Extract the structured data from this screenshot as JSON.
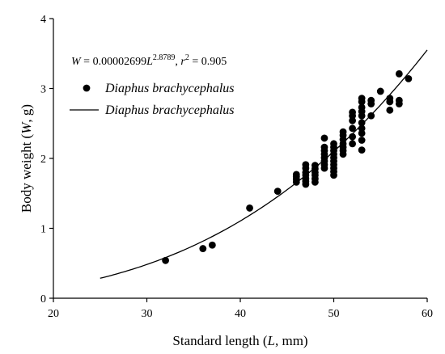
{
  "chart_data": {
    "type": "scatter",
    "xlabel_parts": [
      "Standard length (",
      "L",
      ", mm)"
    ],
    "ylabel_parts": [
      "Body weight (",
      "W",
      ", g)"
    ],
    "xlim": [
      20,
      60
    ],
    "ylim": [
      0,
      4
    ],
    "x_ticks": [
      20,
      30,
      40,
      50,
      60
    ],
    "y_ticks": [
      0,
      1,
      2,
      3,
      4
    ],
    "grid": false,
    "legend_position": "top-left",
    "equation": {
      "lhs": "W",
      "eq": " = 0.00002699",
      "var": "L",
      "exponent": "2.8789",
      "sep": ", ",
      "r": "r",
      "r_exp": "2",
      "r_val": " = 0.905"
    },
    "series": [
      {
        "name": "Diaphus brachycephalus",
        "kind": "scatter",
        "marker": "filled-circle",
        "color": "#000000",
        "points": [
          [
            32,
            0.54
          ],
          [
            36,
            0.71
          ],
          [
            37,
            0.76
          ],
          [
            41,
            1.29
          ],
          [
            44,
            1.53
          ],
          [
            46,
            1.66
          ],
          [
            46,
            1.7
          ],
          [
            46,
            1.74
          ],
          [
            46,
            1.77
          ],
          [
            47,
            1.63
          ],
          [
            47,
            1.67
          ],
          [
            47,
            1.71
          ],
          [
            47,
            1.76
          ],
          [
            47,
            1.8
          ],
          [
            47,
            1.86
          ],
          [
            47,
            1.91
          ],
          [
            48,
            1.66
          ],
          [
            48,
            1.71
          ],
          [
            48,
            1.76
          ],
          [
            48,
            1.8
          ],
          [
            48,
            1.85
          ],
          [
            48,
            1.9
          ],
          [
            49,
            1.86
          ],
          [
            49,
            1.91
          ],
          [
            49,
            1.96
          ],
          [
            49,
            2.01
          ],
          [
            49,
            2.06
          ],
          [
            49,
            2.11
          ],
          [
            49,
            2.16
          ],
          [
            49,
            2.29
          ],
          [
            50,
            1.76
          ],
          [
            50,
            1.81
          ],
          [
            50,
            1.86
          ],
          [
            50,
            1.91
          ],
          [
            50,
            1.96
          ],
          [
            50,
            2.01
          ],
          [
            50,
            2.06
          ],
          [
            50,
            2.11
          ],
          [
            50,
            2.16
          ],
          [
            50,
            2.21
          ],
          [
            51,
            2.06
          ],
          [
            51,
            2.11
          ],
          [
            51,
            2.16
          ],
          [
            51,
            2.21
          ],
          [
            51,
            2.27
          ],
          [
            51,
            2.33
          ],
          [
            51,
            2.38
          ],
          [
            52,
            2.21
          ],
          [
            52,
            2.31
          ],
          [
            52,
            2.43
          ],
          [
            52,
            2.54
          ],
          [
            52,
            2.61
          ],
          [
            52,
            2.66
          ],
          [
            53,
            2.12
          ],
          [
            53,
            2.26
          ],
          [
            53,
            2.36
          ],
          [
            53,
            2.43
          ],
          [
            53,
            2.51
          ],
          [
            53,
            2.61
          ],
          [
            53,
            2.67
          ],
          [
            53,
            2.73
          ],
          [
            53,
            2.81
          ],
          [
            53,
            2.86
          ],
          [
            54,
            2.61
          ],
          [
            54,
            2.78
          ],
          [
            54,
            2.83
          ],
          [
            55,
            2.96
          ],
          [
            56,
            2.69
          ],
          [
            56,
            2.81
          ],
          [
            56,
            2.86
          ],
          [
            57,
            2.78
          ],
          [
            57,
            2.83
          ],
          [
            57,
            3.21
          ],
          [
            58,
            3.14
          ]
        ]
      },
      {
        "name": "Diaphus brachycephalus",
        "kind": "line",
        "color": "#000000",
        "model": {
          "a": 2.699e-05,
          "b": 2.8789
        },
        "x_range": [
          25,
          60
        ]
      }
    ]
  }
}
